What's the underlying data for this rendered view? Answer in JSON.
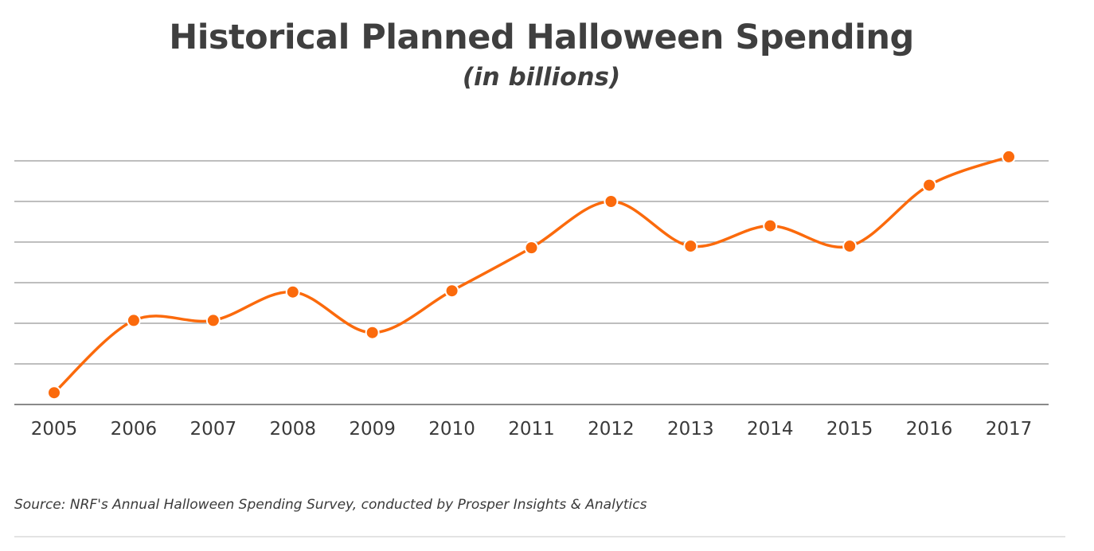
{
  "chart_data": {
    "type": "line",
    "title": "Historical Planned Halloween Spending",
    "subtitle": "(in billions)",
    "xlabel": "",
    "ylabel": "",
    "categories": [
      "2005",
      "2006",
      "2007",
      "2008",
      "2009",
      "2010",
      "2011",
      "2012",
      "2013",
      "2014",
      "2015",
      "2016",
      "2017"
    ],
    "series": [
      {
        "values": [
          3.29,
          5.07,
          5.07,
          5.77,
          4.77,
          5.8,
          6.86,
          8.0,
          6.9,
          7.4,
          6.9,
          8.4,
          9.1
        ]
      }
    ],
    "ylim": [
      3.0,
      9.0
    ],
    "grid": true,
    "legend": "none",
    "line_color": "#fb6a0c"
  },
  "source": "Source: NRF's Annual Halloween Spending Survey, conducted by Prosper Insights & Analytics"
}
